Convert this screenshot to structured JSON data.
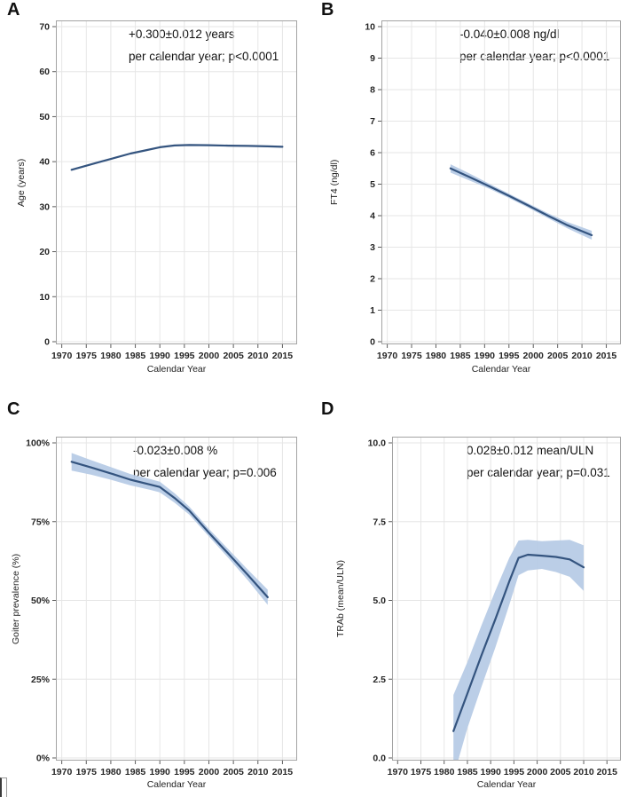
{
  "colors": {
    "line": "#34547f",
    "band": "#b7cbe6",
    "grid": "#e6e6e6",
    "frame": "#a3a3a3",
    "tick": "#5c5c5c",
    "tick_label": "#262626",
    "annotation_text": "#111111"
  },
  "chart_data": [
    {
      "panel": "A",
      "type": "line",
      "annotation1": "+0.300±0.012 years",
      "annotation2": "per calendar year; p<0.0001",
      "xlabel": "Calendar Year",
      "ylabel": "Age (years)",
      "xlim": [
        1968.8,
        2018
      ],
      "xticks": [
        1970,
        1975,
        1980,
        1985,
        1990,
        1995,
        2000,
        2005,
        2010,
        2015
      ],
      "xtick_labels": [
        "1970",
        "1975",
        "1980",
        "1985",
        "1990",
        "1995",
        "2000",
        "2005",
        "2010",
        "2015"
      ],
      "ylim": [
        0,
        70
      ],
      "yticks": [
        0,
        10,
        20,
        30,
        40,
        50,
        60,
        70
      ],
      "ytick_labels": [
        "0",
        "10",
        "20",
        "30",
        "40",
        "50",
        "60",
        "70"
      ],
      "grid": true,
      "line": [
        [
          1972,
          38.2
        ],
        [
          1975,
          39.1
        ],
        [
          1978,
          40.0
        ],
        [
          1981,
          40.9
        ],
        [
          1984,
          41.8
        ],
        [
          1987,
          42.5
        ],
        [
          1990,
          43.2
        ],
        [
          1993,
          43.6
        ],
        [
          1996,
          43.7
        ],
        [
          2000,
          43.65
        ],
        [
          2004,
          43.55
        ],
        [
          2008,
          43.5
        ],
        [
          2012,
          43.4
        ],
        [
          2015,
          43.3
        ]
      ],
      "band": []
    },
    {
      "panel": "B",
      "type": "line",
      "annotation1": "-0.040±0.008 ng/dl",
      "annotation2": "per calendar year; p<0.0001",
      "xlabel": "Calendar Year",
      "ylabel": "FT4 (ng/dl)",
      "xlim": [
        1968.8,
        2018
      ],
      "xticks": [
        1970,
        1975,
        1980,
        1985,
        1990,
        1995,
        2000,
        2005,
        2010,
        2015
      ],
      "xtick_labels": [
        "1970",
        "1975",
        "1980",
        "1985",
        "1990",
        "1995",
        "2000",
        "2005",
        "2010",
        "2015"
      ],
      "ylim": [
        0,
        10
      ],
      "yticks": [
        0,
        1,
        2,
        3,
        4,
        5,
        6,
        7,
        8,
        9,
        10
      ],
      "ytick_labels": [
        "0",
        "1",
        "2",
        "3",
        "4",
        "5",
        "6",
        "7",
        "8",
        "9",
        "10"
      ],
      "grid": true,
      "line": [
        [
          1983,
          5.5
        ],
        [
          1987,
          5.22
        ],
        [
          1991,
          4.93
        ],
        [
          1995,
          4.63
        ],
        [
          1999,
          4.32
        ],
        [
          2003,
          4.0
        ],
        [
          2007,
          3.7
        ],
        [
          2012,
          3.38
        ]
      ],
      "band": [
        [
          1983,
          5.37,
          5.63
        ],
        [
          1987,
          5.11,
          5.33
        ],
        [
          1991,
          4.85,
          5.01
        ],
        [
          1995,
          4.56,
          4.7
        ],
        [
          1999,
          4.25,
          4.39
        ],
        [
          2003,
          3.92,
          4.08
        ],
        [
          2007,
          3.6,
          3.8
        ],
        [
          2012,
          3.24,
          3.52
        ]
      ]
    },
    {
      "panel": "C",
      "type": "line",
      "annotation1": "-0.023±0.008 %",
      "annotation2": "per calendar year; p=0.006",
      "xlabel": "Calendar Year",
      "ylabel": "Goiter prevalence (%)",
      "xlim": [
        1968.8,
        2018
      ],
      "xticks": [
        1970,
        1975,
        1980,
        1985,
        1990,
        1995,
        2000,
        2005,
        2010,
        2015
      ],
      "xtick_labels": [
        "1970",
        "1975",
        "1980",
        "1985",
        "1990",
        "1995",
        "2000",
        "2005",
        "2010",
        "2015"
      ],
      "ylim": [
        0,
        100
      ],
      "yticks": [
        0,
        25,
        50,
        75,
        100
      ],
      "ytick_labels": [
        "0%",
        "25%",
        "50%",
        "75%",
        "100%"
      ],
      "grid": true,
      "line": [
        [
          1972,
          94
        ],
        [
          1976,
          92.2
        ],
        [
          1980,
          90.3
        ],
        [
          1984,
          88.3
        ],
        [
          1988,
          86.8
        ],
        [
          1990,
          86
        ],
        [
          1993,
          82.5
        ],
        [
          1996,
          78.5
        ],
        [
          2000,
          71.5
        ],
        [
          2004,
          64.8
        ],
        [
          2008,
          58
        ],
        [
          2012,
          51
        ]
      ],
      "band": [
        [
          1972,
          91.2,
          96.8
        ],
        [
          1976,
          89.9,
          94.5
        ],
        [
          1980,
          88.3,
          92.3
        ],
        [
          1984,
          86.5,
          90.1
        ],
        [
          1988,
          85.1,
          88.5
        ],
        [
          1990,
          84.3,
          87.7
        ],
        [
          1993,
          81.0,
          84.0
        ],
        [
          1996,
          77.2,
          79.8
        ],
        [
          2000,
          70.3,
          72.7
        ],
        [
          2004,
          63.4,
          66.2
        ],
        [
          2008,
          56.3,
          59.7
        ],
        [
          2012,
          48.6,
          53.4
        ]
      ]
    },
    {
      "panel": "D",
      "type": "line",
      "annotation1": "0.028±0.012 mean/ULN",
      "annotation2": "per calendar year; p=0.031",
      "xlabel": "Calendar Year",
      "ylabel": "TRAb (mean/ULN)",
      "xlim": [
        1968.8,
        2018
      ],
      "xticks": [
        1970,
        1975,
        1980,
        1985,
        1990,
        1995,
        2000,
        2005,
        2010,
        2015
      ],
      "xtick_labels": [
        "1970",
        "1975",
        "1980",
        "1985",
        "1990",
        "1995",
        "2000",
        "2005",
        "2010",
        "2015"
      ],
      "ylim": [
        0,
        10
      ],
      "yticks": [
        0,
        2.5,
        5,
        7.5,
        10
      ],
      "ytick_labels": [
        "0.0",
        "2.5",
        "5.0",
        "7.5",
        "10.0"
      ],
      "grid": true,
      "line": [
        [
          1982,
          0.85
        ],
        [
          1985,
          2.05
        ],
        [
          1988,
          3.25
        ],
        [
          1991,
          4.4
        ],
        [
          1994,
          5.6
        ],
        [
          1996,
          6.35
        ],
        [
          1998,
          6.45
        ],
        [
          2001,
          6.42
        ],
        [
          2004,
          6.38
        ],
        [
          2007,
          6.3
        ],
        [
          2010,
          6.05
        ]
      ],
      "band": [
        [
          1982,
          -0.6,
          2.0
        ],
        [
          1985,
          0.95,
          3.05
        ],
        [
          1988,
          2.25,
          4.2
        ],
        [
          1991,
          3.5,
          5.3
        ],
        [
          1994,
          4.85,
          6.35
        ],
        [
          1996,
          5.8,
          6.9
        ],
        [
          1998,
          5.95,
          6.92
        ],
        [
          2001,
          6.0,
          6.88
        ],
        [
          2004,
          5.9,
          6.9
        ],
        [
          2007,
          5.75,
          6.92
        ],
        [
          2010,
          5.3,
          6.75
        ]
      ]
    }
  ]
}
